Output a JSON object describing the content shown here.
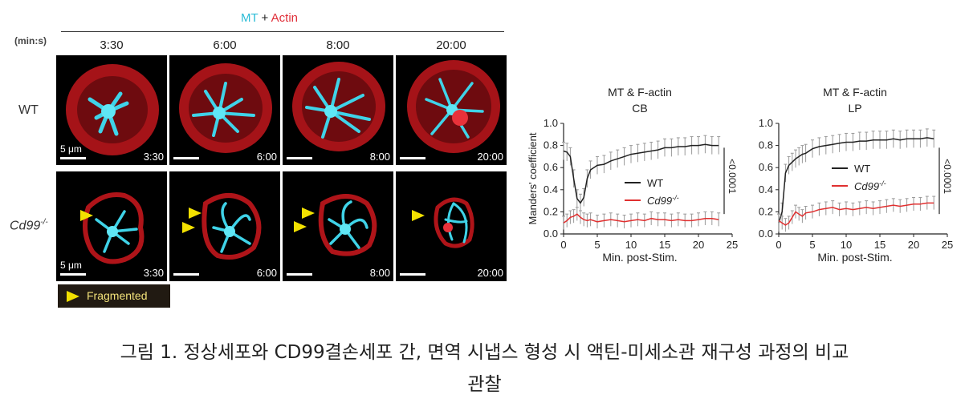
{
  "figure": {
    "title_mt": "MT",
    "title_plus": " + ",
    "title_actin": "Actin",
    "unit_label": "(min:s)",
    "time_labels": [
      "3:30",
      "6:00",
      "8:00",
      "20:00"
    ],
    "row_labels": [
      "WT",
      "Cd99"
    ],
    "row_label_sup": "-/-",
    "scale_bar_label": "5 μm",
    "legend_text": "Fragmented",
    "colors": {
      "microtubule": "#2bbcd6",
      "actin": "#e0303a",
      "arrowhead": "#f2e000",
      "wt_line": "#222222",
      "cd99_line": "#e03030"
    }
  },
  "chart_data": [
    {
      "type": "line",
      "title": "MT & F-actin",
      "subtitle": "CB",
      "xlabel": "Min. post-Stim.",
      "ylabel": "Manders' coefficient",
      "xlim": [
        0,
        25
      ],
      "ylim": [
        0,
        1.0
      ],
      "xticks": [
        "0",
        "5",
        "10",
        "15",
        "20",
        "25"
      ],
      "yticks": [
        "0.0",
        "0.2",
        "0.4",
        "0.6",
        "0.8",
        "1.0"
      ],
      "annotation": "<0.0001",
      "legend": "right",
      "series": [
        {
          "name": "WT",
          "x": [
            0,
            0.5,
            1,
            1.5,
            2,
            2.5,
            3,
            3.5,
            4,
            5,
            6,
            7,
            8,
            9,
            10,
            11,
            12,
            13,
            14,
            15,
            16,
            17,
            18,
            19,
            20,
            21,
            22,
            23
          ],
          "y": [
            0.75,
            0.74,
            0.7,
            0.5,
            0.32,
            0.28,
            0.33,
            0.5,
            0.58,
            0.62,
            0.63,
            0.66,
            0.68,
            0.7,
            0.72,
            0.73,
            0.74,
            0.75,
            0.76,
            0.78,
            0.78,
            0.79,
            0.79,
            0.8,
            0.8,
            0.81,
            0.8,
            0.8
          ]
        },
        {
          "name": "Cd99",
          "x": [
            0,
            0.5,
            1,
            1.5,
            2,
            2.5,
            3,
            3.5,
            4,
            5,
            6,
            7,
            8,
            9,
            10,
            11,
            12,
            13,
            14,
            15,
            16,
            17,
            18,
            19,
            20,
            21,
            22,
            23
          ],
          "y": [
            0.1,
            0.12,
            0.15,
            0.16,
            0.18,
            0.15,
            0.13,
            0.12,
            0.13,
            0.11,
            0.12,
            0.13,
            0.12,
            0.11,
            0.12,
            0.13,
            0.12,
            0.14,
            0.13,
            0.13,
            0.12,
            0.13,
            0.12,
            0.12,
            0.13,
            0.14,
            0.14,
            0.13
          ]
        }
      ],
      "legend_sup": "-/-"
    },
    {
      "type": "line",
      "title": "MT & F-actin",
      "subtitle": "LP",
      "xlabel": "Min. post-Stim.",
      "ylabel": "",
      "xlim": [
        0,
        25
      ],
      "ylim": [
        0,
        1.0
      ],
      "xticks": [
        "0",
        "5",
        "10",
        "15",
        "20",
        "25"
      ],
      "yticks": [
        "0.0",
        "0.2",
        "0.4",
        "0.6",
        "0.8",
        "1.0"
      ],
      "annotation": "<0.0001",
      "legend": "right",
      "series": [
        {
          "name": "WT",
          "x": [
            0,
            0.5,
            1,
            1.5,
            2,
            2.5,
            3,
            3.5,
            4,
            5,
            6,
            7,
            8,
            9,
            10,
            11,
            12,
            13,
            14,
            15,
            16,
            17,
            18,
            19,
            20,
            21,
            22,
            23
          ],
          "y": [
            0.1,
            0.2,
            0.55,
            0.62,
            0.65,
            0.68,
            0.7,
            0.72,
            0.73,
            0.77,
            0.79,
            0.8,
            0.81,
            0.82,
            0.83,
            0.83,
            0.84,
            0.84,
            0.85,
            0.85,
            0.85,
            0.86,
            0.85,
            0.86,
            0.86,
            0.86,
            0.87,
            0.86
          ]
        },
        {
          "name": "Cd99",
          "x": [
            0,
            0.5,
            1,
            1.5,
            2,
            2.5,
            3,
            3.5,
            4,
            5,
            6,
            7,
            8,
            9,
            10,
            11,
            12,
            13,
            14,
            15,
            16,
            17,
            18,
            19,
            20,
            21,
            22,
            23
          ],
          "y": [
            0.12,
            0.1,
            0.08,
            0.1,
            0.15,
            0.2,
            0.18,
            0.16,
            0.19,
            0.2,
            0.22,
            0.23,
            0.24,
            0.22,
            0.23,
            0.22,
            0.23,
            0.24,
            0.23,
            0.24,
            0.25,
            0.26,
            0.25,
            0.26,
            0.27,
            0.27,
            0.28,
            0.28
          ]
        }
      ],
      "legend_sup": "-/-"
    }
  ],
  "caption": {
    "line1": "그림 1. 정상세포와 CD99결손세포 간, 면역 시냅스 형성 시 액틴-미세소관 재구성 과정의 비교",
    "line2": "관찰"
  }
}
